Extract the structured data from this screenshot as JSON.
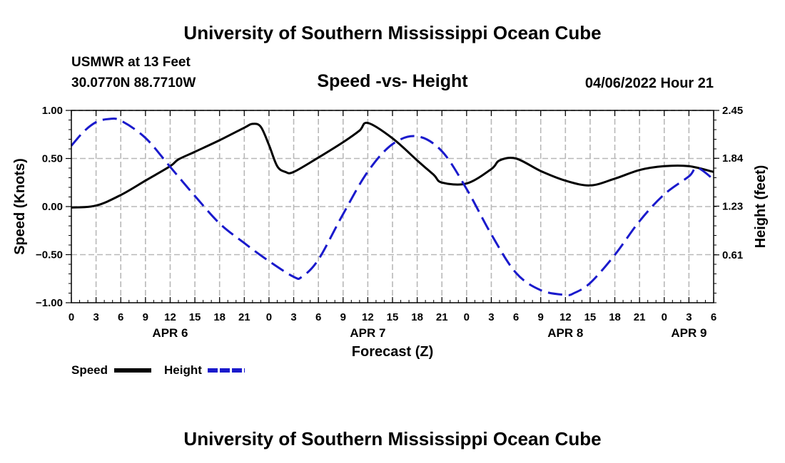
{
  "page": {
    "title_top": "University of Southern Mississippi Ocean Cube",
    "title_bottom": "University of Southern Mississippi Ocean Cube",
    "station": "USMWR at 13 Feet",
    "coords": "30.0770N  88.7710W",
    "chart_title": "Speed -vs- Height",
    "timestamp": "04/06/2022 Hour 21"
  },
  "chart_data": {
    "type": "line",
    "title": "Speed -vs- Height",
    "xlabel": "Forecast (Z)",
    "ylabel": "Speed (Knots)",
    "y2label": "Height (feet)",
    "x_range_hours": [
      0,
      78
    ],
    "ylim": [
      -1.0,
      1.0
    ],
    "y2lim": [
      0.0,
      2.45
    ],
    "y_ticks": [
      "1.00",
      "0.50",
      "0.00",
      "−0.50",
      "−1.00"
    ],
    "y2_ticks": [
      "2.45",
      "1.84",
      "1.23",
      "0.61"
    ],
    "x_ticks": [
      "0",
      "3",
      "6",
      "9",
      "12",
      "15",
      "18",
      "21",
      "0",
      "3",
      "6",
      "9",
      "12",
      "15",
      "18",
      "21",
      "0",
      "3",
      "6",
      "9",
      "12",
      "15",
      "18",
      "21",
      "0",
      "3",
      "6"
    ],
    "date_labels": [
      {
        "label": "APR 6",
        "hour": 12
      },
      {
        "label": "APR 7",
        "hour": 36
      },
      {
        "label": "APR 8",
        "hour": 60
      },
      {
        "label": "APR 9",
        "hour": 75
      }
    ],
    "grid": true,
    "legend": [
      "Speed",
      "Height"
    ],
    "series": [
      {
        "name": "Speed",
        "axis": "left",
        "color": "#000000",
        "dash": "solid",
        "x": [
          0,
          3,
          6,
          9,
          12,
          13,
          15,
          18,
          21,
          22,
          23,
          24,
          25,
          26,
          27,
          30,
          33,
          35,
          36,
          39,
          42,
          44,
          45,
          48,
          51,
          52,
          54,
          57,
          60,
          63,
          66,
          69,
          72,
          75,
          78
        ],
        "y": [
          -0.01,
          0.01,
          0.12,
          0.27,
          0.42,
          0.49,
          0.57,
          0.69,
          0.82,
          0.86,
          0.83,
          0.64,
          0.42,
          0.36,
          0.36,
          0.51,
          0.67,
          0.79,
          0.87,
          0.71,
          0.48,
          0.33,
          0.25,
          0.24,
          0.39,
          0.48,
          0.5,
          0.37,
          0.27,
          0.22,
          0.29,
          0.38,
          0.42,
          0.42,
          0.36
        ]
      },
      {
        "name": "Height",
        "axis": "right",
        "color": "#1a1acc",
        "dash": "dashed",
        "x": [
          0,
          1.5,
          3,
          4.5,
          6,
          9,
          12,
          15,
          18,
          21,
          24,
          27,
          28,
          30,
          33,
          36,
          39,
          42,
          45,
          48,
          51,
          54,
          57,
          60,
          61,
          63,
          66,
          69,
          72,
          75,
          76,
          78
        ],
        "y": [
          2.0,
          2.18,
          2.3,
          2.34,
          2.32,
          2.1,
          1.73,
          1.36,
          1.01,
          0.76,
          0.53,
          0.33,
          0.33,
          0.55,
          1.13,
          1.67,
          2.02,
          2.12,
          1.93,
          1.45,
          0.87,
          0.38,
          0.16,
          0.1,
          0.12,
          0.25,
          0.61,
          1.04,
          1.38,
          1.61,
          1.72,
          1.57
        ]
      }
    ]
  }
}
